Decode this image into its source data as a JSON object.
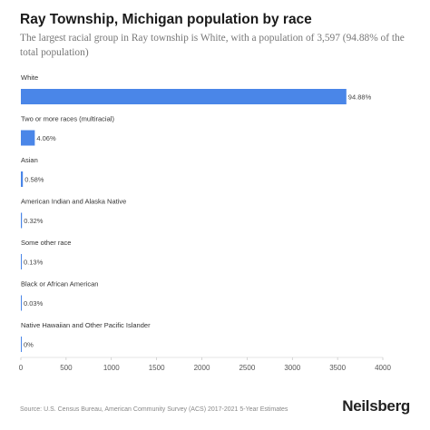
{
  "header": {
    "title": "Ray Township, Michigan population by race",
    "subtitle": "The largest racial group in Ray township is White, with a population of 3,597 (94.88% of the total population)"
  },
  "chart_data": {
    "type": "bar",
    "orientation": "horizontal",
    "categories": [
      "White",
      "Two or more races (multiracial)",
      "Asian",
      "American Indian and Alaska Native",
      "Some other race",
      "Black or African American",
      "Native Hawaiian and Other Pacific Islander"
    ],
    "values": [
      3597,
      154,
      22,
      12,
      5,
      1,
      0
    ],
    "value_labels": [
      "94.88%",
      "4.06%",
      "0.58%",
      "0.32%",
      "0.13%",
      "0.03%",
      "0%"
    ],
    "xlim": [
      0,
      4000
    ],
    "xticks": [
      0,
      500,
      1000,
      1500,
      2000,
      2500,
      3000,
      3500,
      4000
    ],
    "bar_color": "#4a86e8",
    "grid": false,
    "legend": "none"
  },
  "footer": {
    "source": "Source: U.S. Census Bureau, American Community Survey (ACS) 2017-2021 5-Year Estimates",
    "brand": "Neilsberg"
  }
}
